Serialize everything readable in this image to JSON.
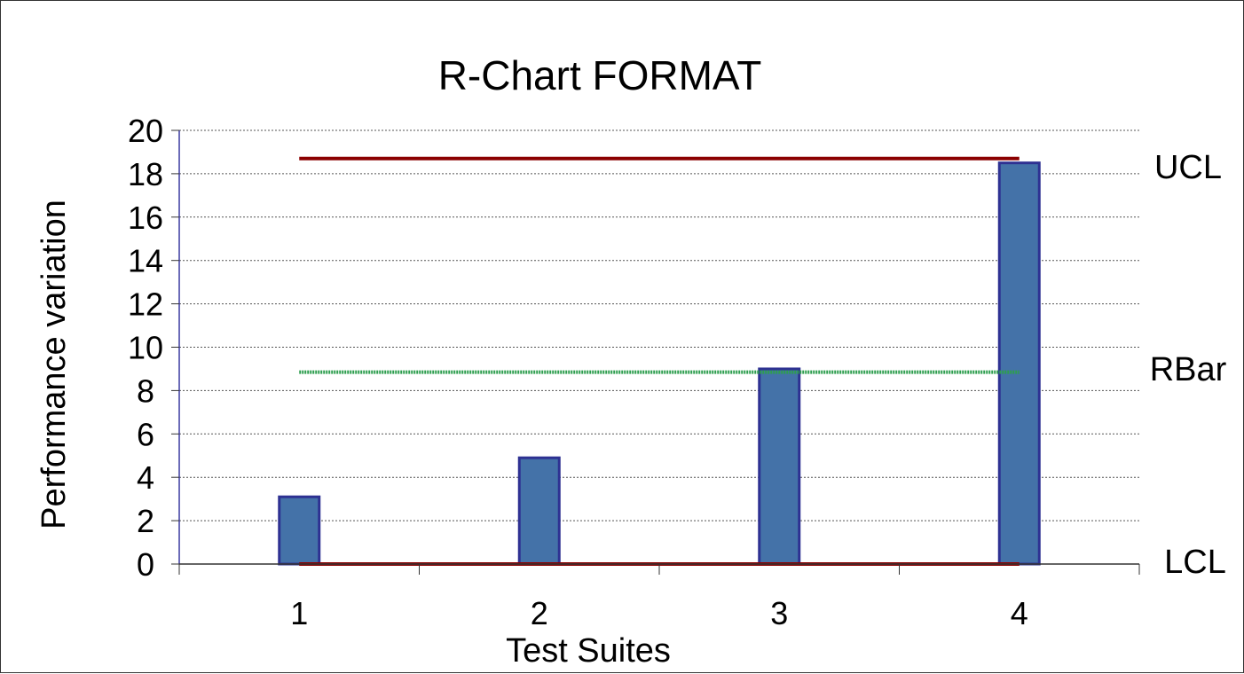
{
  "chart_data": {
    "type": "bar",
    "title": "R-Chart FORMAT",
    "xlabel": "Test Suites",
    "ylabel": "Performance variation",
    "categories": [
      "1",
      "2",
      "3",
      "4"
    ],
    "values": [
      3.1,
      4.9,
      9.0,
      18.5
    ],
    "ylim": [
      0,
      20
    ],
    "yticks": [
      0,
      2,
      4,
      6,
      8,
      10,
      12,
      14,
      16,
      18,
      20
    ],
    "grid": true,
    "control_lines": [
      {
        "label": "UCL",
        "value": 18.7,
        "color": "#8b0000",
        "style": "solid"
      },
      {
        "label": "RBar",
        "value": 8.85,
        "color": "#2e9e4f",
        "style": "dotted"
      },
      {
        "label": "LCL",
        "value": 0,
        "color": "#8b0000",
        "style": "solid"
      }
    ],
    "bar_fill": "#4472a8",
    "bar_stroke": "#2e3192"
  }
}
